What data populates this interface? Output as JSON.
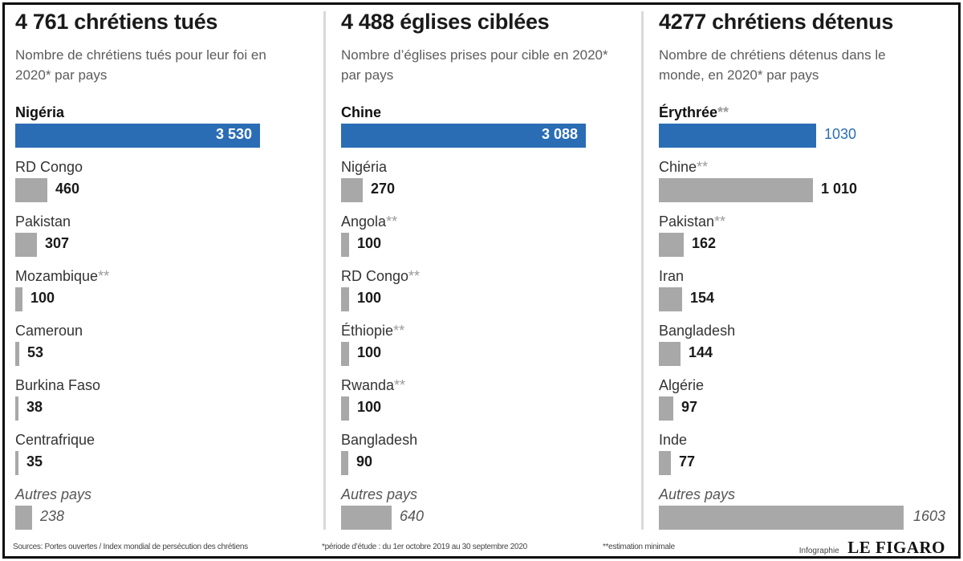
{
  "chart_data": [
    {
      "type": "bar",
      "title": "4 761 chrétiens tués",
      "subtitle": "Nombre de chrétiens tués pour leur foi en 2020* par pays",
      "rows": [
        {
          "label": "Nigéria",
          "stars": "",
          "value": 3530,
          "value_label": "3 530",
          "highlight": true
        },
        {
          "label": "RD Congo",
          "stars": "",
          "value": 460,
          "value_label": "460",
          "highlight": false
        },
        {
          "label": "Pakistan",
          "stars": "",
          "value": 307,
          "value_label": "307",
          "highlight": false
        },
        {
          "label": "Mozambique",
          "stars": "**",
          "value": 100,
          "value_label": "100",
          "highlight": false
        },
        {
          "label": "Cameroun",
          "stars": "",
          "value": 53,
          "value_label": "53",
          "highlight": false
        },
        {
          "label": "Burkina Faso",
          "stars": "",
          "value": 38,
          "value_label": "38",
          "highlight": false
        },
        {
          "label": "Centrafrique",
          "stars": "",
          "value": 35,
          "value_label": "35",
          "highlight": false
        },
        {
          "label": "Autres pays",
          "stars": "",
          "value": 238,
          "value_label": "238",
          "highlight": false,
          "other": true
        }
      ]
    },
    {
      "type": "bar",
      "title": "4 488 églises ciblées",
      "subtitle": "Nombre d’églises prises pour cible en 2020* par pays",
      "rows": [
        {
          "label": "Chine",
          "stars": "",
          "value": 3088,
          "value_label": "3 088",
          "highlight": true
        },
        {
          "label": "Nigéria",
          "stars": "",
          "value": 270,
          "value_label": "270",
          "highlight": false
        },
        {
          "label": "Angola",
          "stars": "**",
          "value": 100,
          "value_label": "100",
          "highlight": false
        },
        {
          "label": "RD Congo",
          "stars": "**",
          "value": 100,
          "value_label": "100",
          "highlight": false
        },
        {
          "label": "Éthiopie",
          "stars": "**",
          "value": 100,
          "value_label": "100",
          "highlight": false
        },
        {
          "label": "Rwanda",
          "stars": "**",
          "value": 100,
          "value_label": "100",
          "highlight": false
        },
        {
          "label": "Bangladesh",
          "stars": "",
          "value": 90,
          "value_label": "90",
          "highlight": false
        },
        {
          "label": "Autres pays",
          "stars": "",
          "value": 640,
          "value_label": "640",
          "highlight": false,
          "other": true
        }
      ]
    },
    {
      "type": "bar",
      "title": "4277 chrétiens détenus",
      "subtitle": "Nombre de chrétiens détenus dans le monde, en 2020* par pays",
      "rows": [
        {
          "label": "Érythrée",
          "stars": "**",
          "value": 1030,
          "value_label": "1030",
          "highlight": true
        },
        {
          "label": "Chine",
          "stars": "**",
          "value": 1010,
          "value_label": "1 010",
          "highlight": false
        },
        {
          "label": "Pakistan",
          "stars": "**",
          "value": 162,
          "value_label": "162",
          "highlight": false
        },
        {
          "label": "Iran",
          "stars": "",
          "value": 154,
          "value_label": "154",
          "highlight": false
        },
        {
          "label": "Bangladesh",
          "stars": "",
          "value": 144,
          "value_label": "144",
          "highlight": false
        },
        {
          "label": "Algérie",
          "stars": "",
          "value": 97,
          "value_label": "97",
          "highlight": false
        },
        {
          "label": "Inde",
          "stars": "",
          "value": 77,
          "value_label": "77",
          "highlight": false
        },
        {
          "label": "Autres pays",
          "stars": "",
          "value": 1603,
          "value_label": "1603",
          "highlight": false,
          "other": true
        }
      ]
    }
  ],
  "colors": {
    "highlight": "#2a6db5",
    "bar": "#a8a8a8"
  },
  "footer": {
    "sources": "Sources: Portes ouvertes / Index mondial de persécution des chrétiens",
    "period": "*période d’étude : du 1er octobre 2019 au 30 septembre 2020",
    "estimate": "**estimation minimale",
    "credit": "Infographie",
    "brand": "LE FIGARO"
  }
}
